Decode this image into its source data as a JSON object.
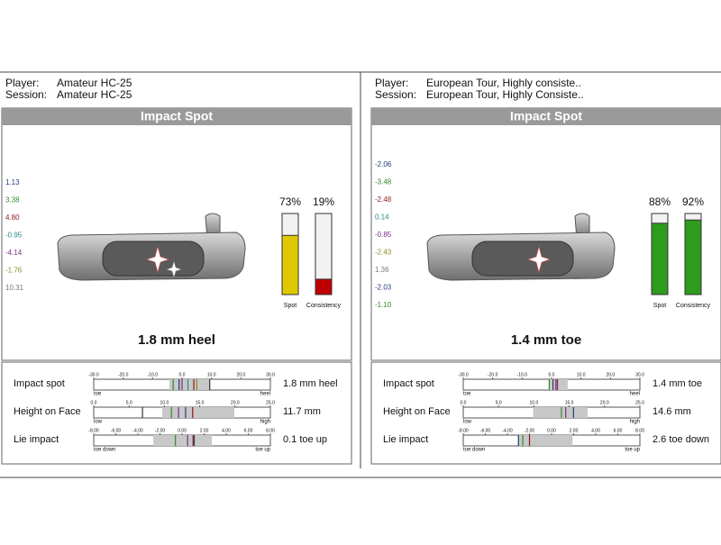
{
  "panels": [
    {
      "player": {
        "label": "Player:",
        "value": "Amateur HC-25"
      },
      "session": {
        "label": "Session:",
        "value": "Amateur HC-25"
      },
      "title": "Impact Spot",
      "side_values": [
        {
          "text": "1.13",
          "color": "#1f3a7a"
        },
        {
          "text": "3.38",
          "color": "#2e8b2e"
        },
        {
          "text": "4.80",
          "color": "#8b1a1a"
        },
        {
          "text": "-0.95",
          "color": "#2a8a8a"
        },
        {
          "text": "-4.14",
          "color": "#7a2a8a"
        },
        {
          "text": "-1.76",
          "color": "#8a8a20"
        },
        {
          "text": "10.31",
          "color": "#777777"
        }
      ],
      "bars": {
        "range": [
          0,
          100
        ],
        "items": [
          {
            "name": "Spot",
            "value": 73,
            "value_label": "73%",
            "color": "#e0c800"
          },
          {
            "name": "Consistency",
            "value": 19,
            "value_label": "19%",
            "color": "#c00000"
          }
        ]
      },
      "result": "1.8 mm heel",
      "metrics": [
        {
          "label": "Impact spot",
          "lim": [
            -30,
            30
          ],
          "ticks": [
            {
              "value": -30,
              "label": "-30.0"
            },
            {
              "value": -20,
              "label": "-20.0"
            },
            {
              "value": -10,
              "label": "-10.0"
            },
            {
              "value": 0,
              "label": "0.0"
            },
            {
              "value": 10,
              "label": "10.0"
            },
            {
              "value": 20,
              "label": "20.0"
            },
            {
              "value": 30,
              "label": "30.0"
            }
          ],
          "ends": [
            "toe",
            "heel"
          ],
          "band": [
            -4.3,
            9.4
          ],
          "shots": [
            {
              "value": -3,
              "color": "#2e8b2e"
            },
            {
              "value": -1,
              "color": "#1f3a7a"
            },
            {
              "value": 0,
              "color": "#7a2a8a"
            },
            {
              "value": 2,
              "color": "#2a8a8a"
            },
            {
              "value": 4,
              "color": "#8b1a1a"
            },
            {
              "value": 5,
              "color": "#8a8a20"
            },
            {
              "value": 9.4,
              "color": "#333333"
            }
          ],
          "value": "1.8 mm heel"
        },
        {
          "label": "Height on Face",
          "lim": [
            0,
            25
          ],
          "ticks": [
            {
              "value": 0,
              "label": "0.0"
            },
            {
              "value": 5,
              "label": "5.0"
            },
            {
              "value": 10,
              "label": "10.0"
            },
            {
              "value": 15,
              "label": "15.0"
            },
            {
              "value": 20,
              "label": "20.0"
            },
            {
              "value": 25,
              "label": "25.0"
            }
          ],
          "ends": [
            "low",
            "high"
          ],
          "band": [
            9.7,
            19.9
          ],
          "shots": [
            {
              "value": 6.9,
              "color": "#333333"
            },
            {
              "value": 11,
              "color": "#2e8b2e"
            },
            {
              "value": 12,
              "color": "#7a2a8a"
            },
            {
              "value": 13,
              "color": "#1f3a7a"
            },
            {
              "value": 14,
              "color": "#8b1a1a"
            }
          ],
          "value": "11.7 mm"
        },
        {
          "label": "Lie impact",
          "lim": [
            -8,
            8
          ],
          "ticks": [
            {
              "value": -8,
              "label": "-8.00"
            },
            {
              "value": -6,
              "label": "-6.00"
            },
            {
              "value": -4,
              "label": "-4.00"
            },
            {
              "value": -2,
              "label": "-2.00"
            },
            {
              "value": 0,
              "label": "0.00"
            },
            {
              "value": 2,
              "label": "2.00"
            },
            {
              "value": 4,
              "label": "4.00"
            },
            {
              "value": 6,
              "label": "6.00"
            },
            {
              "value": 8,
              "label": "8.00"
            }
          ],
          "ends": [
            "toe down",
            "toe up"
          ],
          "band": [
            -2.6,
            2.7
          ],
          "shots": [
            {
              "value": -0.6,
              "color": "#2e8b2e"
            },
            {
              "value": 0.5,
              "color": "#7a2a8a"
            },
            {
              "value": 1.0,
              "color": "#8b1a1a"
            },
            {
              "value": 1.1,
              "color": "#1f3a7a"
            }
          ],
          "value": "0.1 toe up"
        }
      ]
    },
    {
      "player": {
        "label": "Player:",
        "value": "European Tour, Highly consiste.."
      },
      "session": {
        "label": "Session:",
        "value": "European Tour, Highly Consiste.."
      },
      "title": "Impact Spot",
      "side_values": [
        {
          "text": "-2.06",
          "color": "#1f3a7a"
        },
        {
          "text": "-3.48",
          "color": "#2e8b2e"
        },
        {
          "text": "-2.48",
          "color": "#8b1a1a"
        },
        {
          "text": "0.14",
          "color": "#2a8a8a"
        },
        {
          "text": "-0.85",
          "color": "#7a2a8a"
        },
        {
          "text": "-2.43",
          "color": "#8a8a20"
        },
        {
          "text": "1.36",
          "color": "#777777"
        },
        {
          "text": "-2.03",
          "color": "#1f3a7a"
        },
        {
          "text": "-1.10",
          "color": "#2e8b2e"
        }
      ],
      "bars": {
        "range": [
          0,
          100
        ],
        "items": [
          {
            "name": "Spot",
            "value": 88,
            "value_label": "88%",
            "color": "#2e9a1e"
          },
          {
            "name": "Consistency",
            "value": 92,
            "value_label": "92%",
            "color": "#2e9a1e"
          }
        ]
      },
      "result": "1.4 mm toe",
      "metrics": [
        {
          "label": "Impact spot",
          "lim": [
            -30,
            30
          ],
          "ticks": [
            {
              "value": -30,
              "label": "-30.0"
            },
            {
              "value": -20,
              "label": "-20.0"
            },
            {
              "value": -10,
              "label": "-10.0"
            },
            {
              "value": 0,
              "label": "0.0"
            },
            {
              "value": 10,
              "label": "10.0"
            },
            {
              "value": 20,
              "label": "20.0"
            },
            {
              "value": 30,
              "label": "30.0"
            }
          ],
          "ends": [
            "toe",
            "heel"
          ],
          "band": [
            -0.6,
            5.5
          ],
          "shots": [
            {
              "value": -0.8,
              "color": "#2e8b2e"
            },
            {
              "value": 0.5,
              "color": "#1f3a7a"
            },
            {
              "value": 1.5,
              "color": "#8b1a1a"
            },
            {
              "value": 2,
              "color": "#7a2a8a"
            }
          ],
          "value": "1.4 mm toe"
        },
        {
          "label": "Height on Face",
          "lim": [
            0,
            25
          ],
          "ticks": [
            {
              "value": 0,
              "label": "0.0"
            },
            {
              "value": 5,
              "label": "5.0"
            },
            {
              "value": 10,
              "label": "10.0"
            },
            {
              "value": 15,
              "label": "15.0"
            },
            {
              "value": 20,
              "label": "20.0"
            },
            {
              "value": 25,
              "label": "25.0"
            }
          ],
          "ends": [
            "low",
            "high"
          ],
          "band": [
            9.9,
            17.6
          ],
          "shots": [
            {
              "value": 13.9,
              "color": "#2e8b2e"
            },
            {
              "value": 14.5,
              "color": "#7a2a8a"
            },
            {
              "value": 15.6,
              "color": "#1f3a7a"
            }
          ],
          "value": "14.6 mm"
        },
        {
          "label": "Lie impact",
          "lim": [
            -8,
            8
          ],
          "ticks": [
            {
              "value": -8,
              "label": "-8.00"
            },
            {
              "value": -6,
              "label": "-6.00"
            },
            {
              "value": -4,
              "label": "-4.00"
            },
            {
              "value": -2,
              "label": "-2.00"
            },
            {
              "value": 0,
              "label": "0.00"
            },
            {
              "value": 2,
              "label": "2.00"
            },
            {
              "value": 4,
              "label": "4.00"
            },
            {
              "value": 6,
              "label": "6.00"
            },
            {
              "value": 8,
              "label": "8.00"
            }
          ],
          "ends": [
            "toe down",
            "toe up"
          ],
          "band": [
            -3.0,
            1.9
          ],
          "shots": [
            {
              "value": -3.0,
              "color": "#1f3a7a"
            },
            {
              "value": -2.6,
              "color": "#2e8b2e"
            },
            {
              "value": -2.0,
              "color": "#8b1a1a"
            }
          ],
          "value": "2.6 toe down"
        }
      ]
    }
  ]
}
